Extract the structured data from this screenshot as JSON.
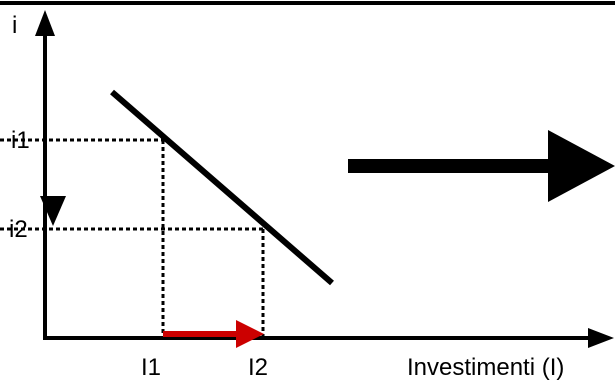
{
  "axes": {
    "y_label": "i",
    "x_label": "Investimenti (I)"
  },
  "ticks": {
    "i1": "i1",
    "i2": "i2",
    "I1": "I1",
    "I2": "I2"
  },
  "colors": {
    "ink": "#000000",
    "shift_arrow": "#cc0000",
    "background": "#ffffff"
  }
}
